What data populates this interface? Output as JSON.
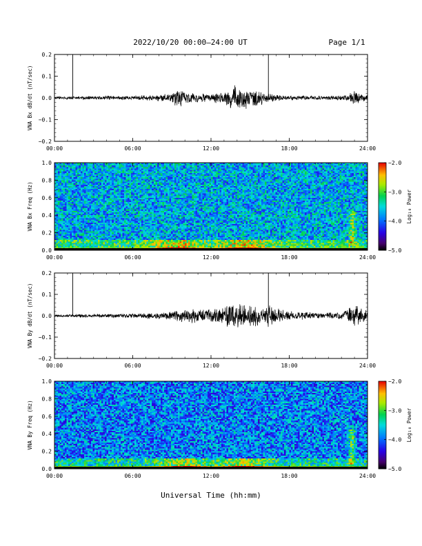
{
  "header": {
    "title": "2022/10/20  00:00–24:00 UT",
    "page": "Page 1/1"
  },
  "footer": {
    "xlabel": "Universal Time (hh:mm)"
  },
  "colors": {
    "waveform": "#000000",
    "axes": "#000000",
    "background": "#ffffff"
  },
  "chart_data": [
    {
      "type": "line",
      "ylabel": "VNA Bx dB/dt (nT/sec)",
      "xlim": [
        0,
        24
      ],
      "ylim": [
        -0.2,
        0.2
      ],
      "x_ticks": [
        "00:00",
        "06:00",
        "12:00",
        "18:00",
        "24:00"
      ],
      "y_ticks": [
        "0.2",
        "0.1",
        "0.0",
        "−0.1",
        "−0.2"
      ],
      "spikes_hours": [
        1.4,
        16.4
      ],
      "envelope": {
        "hours": [
          0,
          2,
          4,
          6,
          8,
          9,
          9.5,
          10,
          11,
          12,
          13,
          13.5,
          14,
          15,
          15.5,
          16,
          17,
          18,
          20,
          22,
          22.5,
          23,
          23.5,
          24
        ],
        "amplitude": [
          0.006,
          0.007,
          0.008,
          0.009,
          0.013,
          0.022,
          0.045,
          0.03,
          0.02,
          0.017,
          0.026,
          0.045,
          0.055,
          0.04,
          0.035,
          0.025,
          0.014,
          0.01,
          0.009,
          0.01,
          0.012,
          0.03,
          0.018,
          0.012
        ]
      }
    },
    {
      "type": "heatmap",
      "ylabel": "VNA Bx Freq (Hz)",
      "xlim": [
        0,
        24
      ],
      "ylim": [
        0.0,
        1.0
      ],
      "x_ticks": [
        "00:00",
        "06:00",
        "12:00",
        "18:00",
        "24:00"
      ],
      "y_ticks": [
        "1.0",
        "0.8",
        "0.6",
        "0.4",
        "0.2",
        "0.0"
      ],
      "colorbar": {
        "label": "Log₁₀ Power",
        "range": [
          -5.0,
          -2.0
        ],
        "ticks": [
          "−2.0",
          "−3.0",
          "−4.0",
          "−5.0"
        ]
      },
      "background_log_power": -3.7,
      "low_freq_peak_hours": [
        9.5,
        14.5
      ],
      "column_feature_hours": [
        22.8
      ]
    },
    {
      "type": "line",
      "ylabel": "VNA By dB/dt (nT/sec)",
      "xlim": [
        0,
        24
      ],
      "ylim": [
        -0.2,
        0.2
      ],
      "x_ticks": [
        "00:00",
        "06:00",
        "12:00",
        "18:00",
        "24:00"
      ],
      "y_ticks": [
        "0.2",
        "0.1",
        "0.0",
        "−0.1",
        "−0.2"
      ],
      "spikes_hours": [
        1.4,
        16.4
      ],
      "envelope": {
        "hours": [
          0,
          2,
          4,
          6,
          8,
          9,
          10,
          11,
          12,
          13,
          13.5,
          14,
          15,
          16,
          16.5,
          17,
          18,
          20,
          22,
          22.5,
          23,
          23.5,
          24
        ],
        "amplitude": [
          0.005,
          0.007,
          0.008,
          0.01,
          0.014,
          0.02,
          0.028,
          0.03,
          0.03,
          0.04,
          0.06,
          0.05,
          0.045,
          0.04,
          0.05,
          0.035,
          0.02,
          0.014,
          0.015,
          0.03,
          0.05,
          0.03,
          0.02
        ]
      }
    },
    {
      "type": "heatmap",
      "ylabel": "VNA By Freq (Hz)",
      "xlim": [
        0,
        24
      ],
      "ylim": [
        0.0,
        1.0
      ],
      "x_ticks": [
        "00:00",
        "06:00",
        "12:00",
        "18:00",
        "24:00"
      ],
      "y_ticks": [
        "1.0",
        "0.8",
        "0.6",
        "0.4",
        "0.2",
        "0.0"
      ],
      "colorbar": {
        "label": "Log₁₀ Power",
        "range": [
          -5.0,
          -2.0
        ],
        "ticks": [
          "−2.0",
          "−3.0",
          "−4.0",
          "−5.0"
        ]
      },
      "background_log_power": -3.9,
      "low_freq_peak_hours": [
        10.0,
        14.5
      ],
      "column_feature_hours": [
        22.8
      ]
    }
  ]
}
